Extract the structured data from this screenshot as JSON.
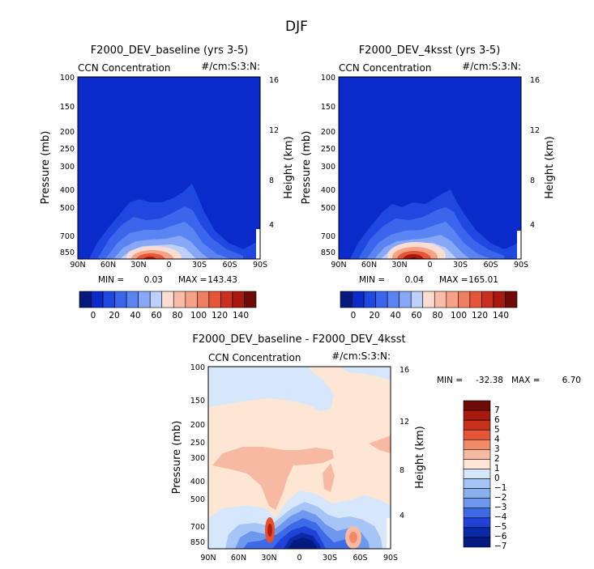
{
  "figure_title": "DJF",
  "chart_data": [
    {
      "type": "heatmap",
      "title": "F2000_DEV_baseline (yrs 3-5)",
      "subtitle_left": "CCN Concentration",
      "subtitle_right": "#/cm:S:3:N:",
      "xlabel": "",
      "ylabel": "Pressure (mb)",
      "ylabel_right": "Height (km)",
      "x_ticks": [
        "90N",
        "60N",
        "30N",
        "0",
        "30S",
        "60S",
        "90S"
      ],
      "y_ticks": [
        "100",
        "150",
        "200",
        "250",
        "300",
        "400",
        "500",
        "700",
        "850"
      ],
      "y2_ticks": [
        "16",
        "12",
        "8",
        "4"
      ],
      "min_label": "MIN =",
      "min_value": "0.03",
      "max_label": "MAX =",
      "max_value": "143.43",
      "colorbar_labels": [
        "0",
        "20",
        "40",
        "60",
        "80",
        "100",
        "120",
        "140"
      ]
    },
    {
      "type": "heatmap",
      "title": "F2000_DEV_4ksst (yrs 3-5)",
      "subtitle_left": "CCN Concentration",
      "subtitle_right": "#/cm:S:3:N:",
      "xlabel": "",
      "ylabel": "Pressure (mb)",
      "ylabel_right": "Height (km)",
      "x_ticks": [
        "90N",
        "60N",
        "30N",
        "0",
        "30S",
        "60S",
        "90S"
      ],
      "y_ticks": [
        "100",
        "150",
        "200",
        "250",
        "300",
        "400",
        "500",
        "700",
        "850"
      ],
      "y2_ticks": [
        "16",
        "12",
        "8",
        "4"
      ],
      "min_label": "MIN =",
      "min_value": "0.04",
      "max_label": "MAX =",
      "max_value": "165.01",
      "colorbar_labels": [
        "0",
        "20",
        "40",
        "60",
        "80",
        "100",
        "120",
        "140"
      ]
    },
    {
      "type": "heatmap",
      "title": "F2000_DEV_baseline - F2000_DEV_4ksst",
      "subtitle_left": "CCN Concentration",
      "subtitle_right": "#/cm:S:3:N:",
      "xlabel": "",
      "ylabel": "Pressure (mb)",
      "ylabel_right": "Height (km)",
      "x_ticks": [
        "90N",
        "60N",
        "30N",
        "0",
        "30S",
        "60S",
        "90S"
      ],
      "y_ticks": [
        "100",
        "150",
        "200",
        "250",
        "300",
        "400",
        "500",
        "700",
        "850"
      ],
      "y2_ticks": [
        "16",
        "12",
        "8",
        "4"
      ],
      "min_label": "MIN =",
      "min_value": "-32.38",
      "max_label": "MAX =",
      "max_value": "6.70",
      "colorbar_labels": [
        "7",
        "6",
        "5",
        "4",
        "3",
        "2",
        "1",
        "0",
        "−1",
        "−2",
        "−3",
        "−4",
        "−5",
        "−6",
        "−7"
      ]
    }
  ]
}
